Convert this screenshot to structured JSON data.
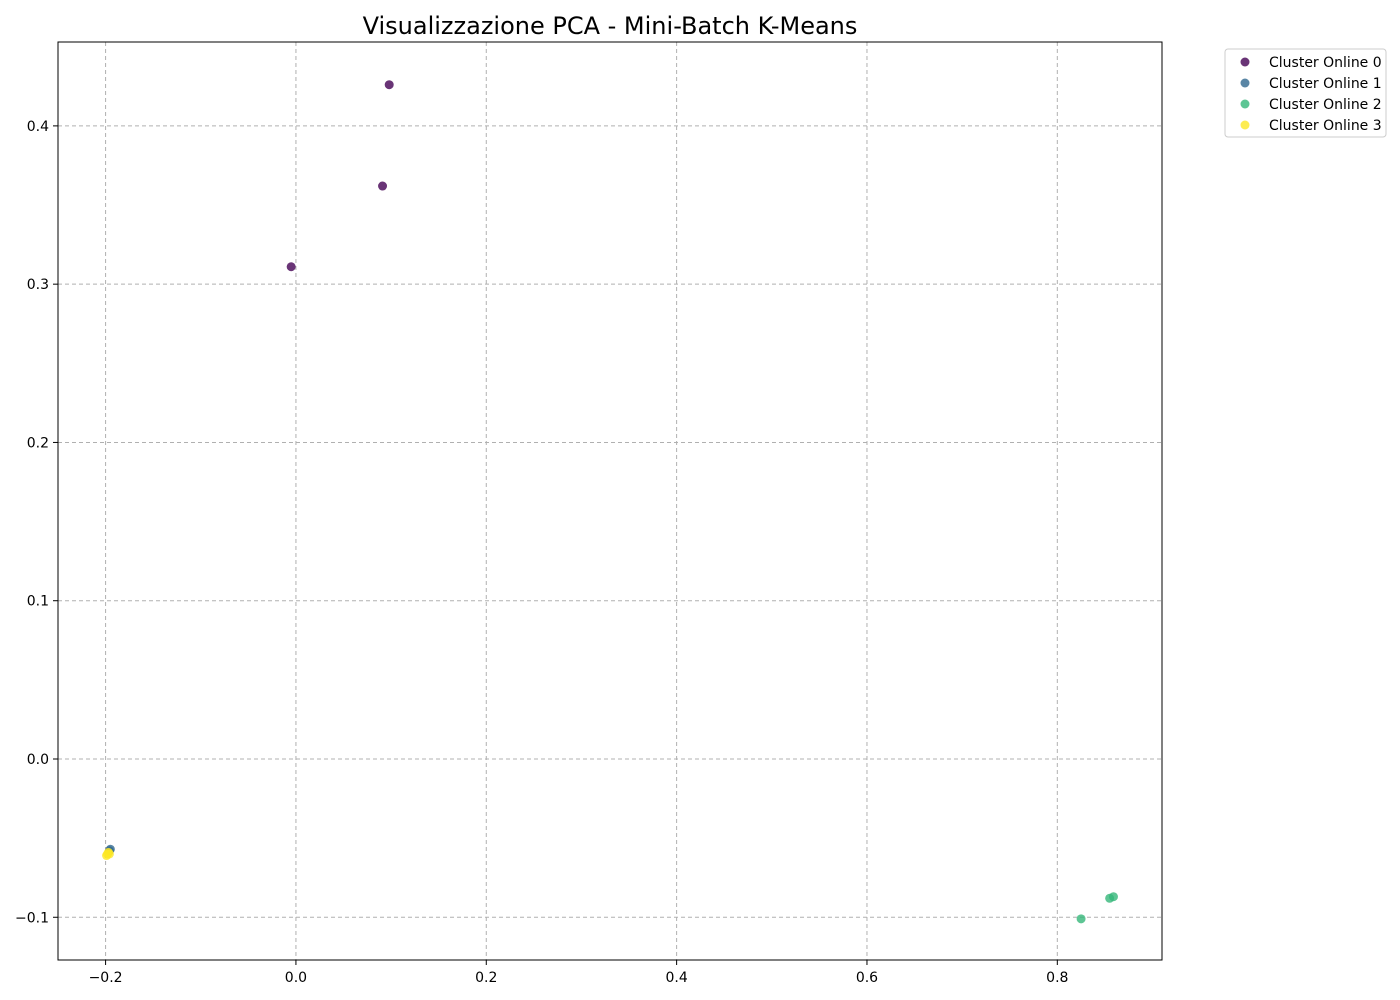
{
  "chart_data": {
    "type": "scatter",
    "title": "Visualizzazione PCA - Mini-Batch K-Means",
    "xlabel": "",
    "ylabel": "",
    "xlim": [
      -0.25,
      0.91
    ],
    "ylim": [
      -0.127,
      0.453
    ],
    "x_ticks": [
      -0.2,
      0.0,
      0.2,
      0.4,
      0.6,
      0.8
    ],
    "x_tick_labels": [
      "−0.2",
      "0.0",
      "0.2",
      "0.4",
      "0.6",
      "0.8"
    ],
    "y_ticks": [
      -0.1,
      0.0,
      0.1,
      0.2,
      0.3,
      0.4
    ],
    "y_tick_labels": [
      "−0.1",
      "0.0",
      "0.1",
      "0.2",
      "0.3",
      "0.4"
    ],
    "grid": true,
    "grid_style": "dashed",
    "legend_position": "outside top-right",
    "series": [
      {
        "name": "Cluster Online 0",
        "color": "#440154",
        "points": [
          {
            "x": 0.098,
            "y": 0.426
          },
          {
            "x": 0.091,
            "y": 0.362
          },
          {
            "x": -0.005,
            "y": 0.311
          }
        ]
      },
      {
        "name": "Cluster Online 1",
        "color": "#31688e",
        "points": [
          {
            "x": -0.195,
            "y": -0.057
          },
          {
            "x": -0.196,
            "y": -0.058
          }
        ]
      },
      {
        "name": "Cluster Online 2",
        "color": "#35b779",
        "points": [
          {
            "x": 0.825,
            "y": -0.101
          },
          {
            "x": 0.855,
            "y": -0.088
          },
          {
            "x": 0.859,
            "y": -0.087
          }
        ]
      },
      {
        "name": "Cluster Online 3",
        "color": "#fde725",
        "points": [
          {
            "x": -0.197,
            "y": -0.059
          },
          {
            "x": -0.199,
            "y": -0.061
          },
          {
            "x": -0.196,
            "y": -0.06
          },
          {
            "x": -0.198,
            "y": -0.06
          }
        ]
      }
    ]
  }
}
